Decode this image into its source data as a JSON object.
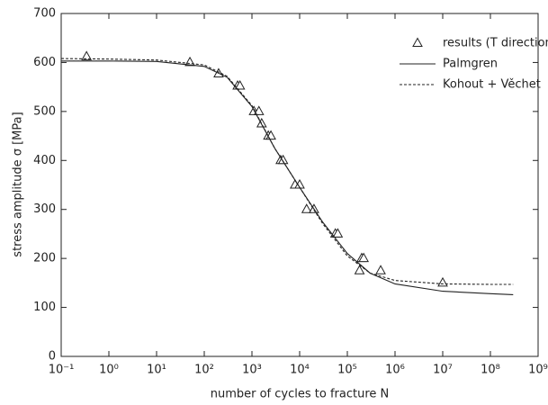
{
  "chart_data": {
    "type": "line",
    "xlabel": "number of cycles to fracture  N",
    "ylabel": "stress amplitude  σ  [MPa]",
    "xscale": "log",
    "xlim": [
      0.1,
      1000000000
    ],
    "xticks": [
      {
        "value": 0.1,
        "label": "10⁻¹"
      },
      {
        "value": 1,
        "label": "10⁰"
      },
      {
        "value": 10,
        "label": "10¹"
      },
      {
        "value": 100,
        "label": "10²"
      },
      {
        "value": 1000,
        "label": "10³"
      },
      {
        "value": 10000,
        "label": "10⁴"
      },
      {
        "value": 100000,
        "label": "10⁵"
      },
      {
        "value": 1000000,
        "label": "10⁶"
      },
      {
        "value": 10000000,
        "label": "10⁷"
      },
      {
        "value": 100000000,
        "label": "10⁸"
      },
      {
        "value": 1000000000,
        "label": "10⁹"
      }
    ],
    "ylim": [
      0,
      700
    ],
    "yticks": [
      0,
      100,
      200,
      300,
      400,
      500,
      600,
      700
    ],
    "legend": "top-right",
    "series": [
      {
        "name": "results (T direction)",
        "style": "markers",
        "color": "#222",
        "x": [
          0.34,
          50,
          200,
          500,
          560,
          1100,
          1400,
          1600,
          2200,
          2500,
          4000,
          4500,
          8000,
          10000,
          14000,
          20000,
          56000,
          63000,
          180000,
          200000,
          220000,
          500000,
          10000000
        ],
        "values": [
          612,
          600,
          577,
          552,
          552,
          500,
          500,
          475,
          450,
          450,
          400,
          400,
          350,
          350,
          300,
          300,
          250,
          250,
          175,
          200,
          200,
          175,
          150
        ]
      },
      {
        "name": "Palmgren",
        "style": "solid",
        "color": "#222",
        "x": [
          0.1,
          1,
          10,
          100,
          300,
          1000,
          3000,
          10000,
          30000,
          100000,
          300000,
          1000000,
          10000000,
          100000000,
          300000000
        ],
        "values": [
          603,
          603,
          602,
          592,
          570,
          510,
          425,
          345,
          275,
          210,
          170,
          148,
          133,
          128,
          126
        ]
      },
      {
        "name": "Kohout + Věchet",
        "style": "dashed",
        "color": "#222",
        "x": [
          0.1,
          1,
          10,
          100,
          300,
          1000,
          3000,
          10000,
          30000,
          100000,
          300000,
          1000000,
          10000000,
          100000000,
          300000000
        ],
        "values": [
          608,
          607,
          605,
          595,
          572,
          512,
          425,
          345,
          272,
          205,
          170,
          155,
          148,
          147,
          147
        ]
      }
    ]
  }
}
